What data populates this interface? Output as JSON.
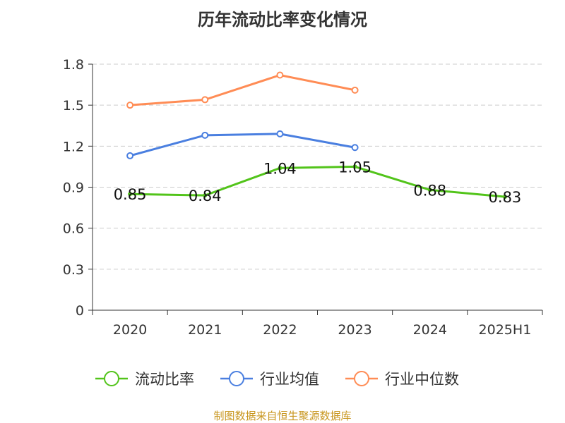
{
  "chart_data": {
    "type": "line",
    "title": "历年流动比率变化情况",
    "categories": [
      "2020",
      "2021",
      "2022",
      "2023",
      "2024",
      "2025H1"
    ],
    "ylim": [
      0,
      1.8
    ],
    "yticks": [
      "0",
      "0.3",
      "0.6",
      "0.9",
      "1.2",
      "1.5",
      "1.8"
    ],
    "grid": true,
    "legend_position": "bottom",
    "series": [
      {
        "name": "流动比率",
        "color": "#52c41a",
        "values": [
          0.85,
          0.84,
          1.04,
          1.05,
          0.88,
          0.83
        ],
        "labels": [
          "0.85",
          "0.84",
          "1.04",
          "1.05",
          "0.88",
          "0.83"
        ]
      },
      {
        "name": "行业均值",
        "color": "#4a7fe0",
        "values": [
          1.13,
          1.28,
          1.29,
          1.19,
          null,
          null
        ]
      },
      {
        "name": "行业中位数",
        "color": "#ff8c55",
        "values": [
          1.5,
          1.54,
          1.72,
          1.61,
          null,
          null
        ]
      }
    ]
  },
  "source": "制图数据来自恒生聚源数据库"
}
